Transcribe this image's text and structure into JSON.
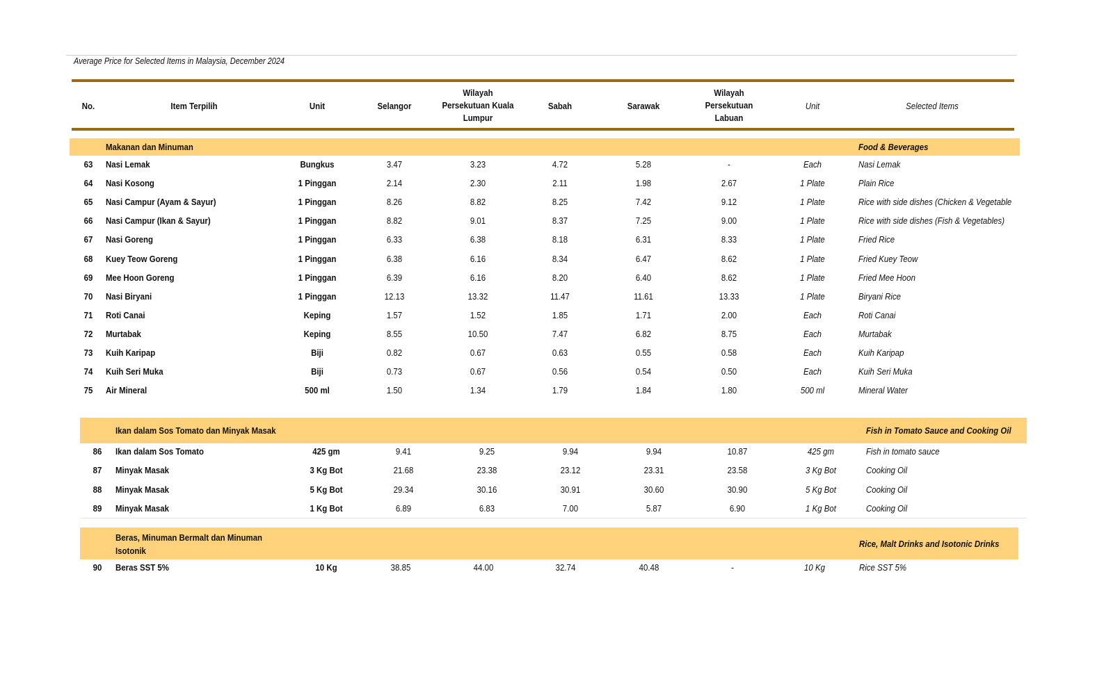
{
  "title": "Average Price for Selected Items in Malaysia, December 2024",
  "accent_color": "#fdd27a",
  "rule_color": "#9b6b12",
  "headers": {
    "no": "No.",
    "item": "Item Terpilih",
    "unit": "Unit",
    "selangor": "Selangor",
    "kl": "Wilayah Persekutuan Kuala Lumpur",
    "sabah": "Sabah",
    "sarawak": "Sarawak",
    "labuan": "Wilayah Persekutuan Labuan",
    "unit_en": "Unit",
    "selected": "Selected Items"
  },
  "sections": [
    {
      "name_ms": "Makanan dan Minuman",
      "name_en": "Food & Beverages",
      "rows": [
        {
          "no": "63",
          "item": "Nasi Lemak",
          "unit": "Bungkus",
          "v": [
            "3.47",
            "3.23",
            "4.72",
            "5.28",
            "-"
          ],
          "unit_en": "Each",
          "item_en": "Nasi Lemak"
        },
        {
          "no": "64",
          "item": "Nasi Kosong",
          "unit": "1 Pinggan",
          "v": [
            "2.14",
            "2.30",
            "2.11",
            "1.98",
            "2.67"
          ],
          "unit_en": "1 Plate",
          "item_en": "Plain Rice"
        },
        {
          "no": "65",
          "item": "Nasi Campur (Ayam & Sayur)",
          "unit": "1 Pinggan",
          "v": [
            "8.26",
            "8.82",
            "8.25",
            "7.42",
            "9.12"
          ],
          "unit_en": "1 Plate",
          "item_en": "Rice with side dishes (Chicken & Vegetable"
        },
        {
          "no": "66",
          "item": "Nasi Campur (Ikan & Sayur)",
          "unit": "1 Pinggan",
          "v": [
            "8.82",
            "9.01",
            "8.37",
            "7.25",
            "9.00"
          ],
          "unit_en": "1 Plate",
          "item_en": "Rice with side dishes (Fish & Vegetables)"
        },
        {
          "no": "67",
          "item": "Nasi Goreng",
          "unit": "1 Pinggan",
          "v": [
            "6.33",
            "6.38",
            "8.18",
            "6.31",
            "8.33"
          ],
          "unit_en": "1 Plate",
          "item_en": "Fried Rice"
        },
        {
          "no": "68",
          "item": "Kuey Teow Goreng",
          "unit": "1 Pinggan",
          "v": [
            "6.38",
            "6.16",
            "8.34",
            "6.47",
            "8.62"
          ],
          "unit_en": "1 Plate",
          "item_en": "Fried Kuey Teow"
        },
        {
          "no": "69",
          "item": "Mee Hoon Goreng",
          "unit": "1 Pinggan",
          "v": [
            "6.39",
            "6.16",
            "8.20",
            "6.40",
            "8.62"
          ],
          "unit_en": "1 Plate",
          "item_en": "Fried Mee Hoon"
        },
        {
          "no": "70",
          "item": "Nasi Biryani",
          "unit": "1 Pinggan",
          "v": [
            "12.13",
            "13.32",
            "11.47",
            "11.61",
            "13.33"
          ],
          "unit_en": "1 Plate",
          "item_en": "Biryani Rice"
        },
        {
          "no": "71",
          "item": "Roti Canai",
          "unit": "Keping",
          "v": [
            "1.57",
            "1.52",
            "1.85",
            "1.71",
            "2.00"
          ],
          "unit_en": "Each",
          "item_en": "Roti Canai"
        },
        {
          "no": "72",
          "item": "Murtabak",
          "unit": "Keping",
          "v": [
            "8.55",
            "10.50",
            "7.47",
            "6.82",
            "8.75"
          ],
          "unit_en": "Each",
          "item_en": "Murtabak"
        },
        {
          "no": "73",
          "item": "Kuih Karipap",
          "unit": "Biji",
          "v": [
            "0.82",
            "0.67",
            "0.63",
            "0.55",
            "0.58"
          ],
          "unit_en": "Each",
          "item_en": "Kuih Karipap"
        },
        {
          "no": "74",
          "item": "Kuih Seri Muka",
          "unit": "Biji",
          "v": [
            "0.73",
            "0.67",
            "0.56",
            "0.54",
            "0.50"
          ],
          "unit_en": "Each",
          "item_en": "Kuih Seri Muka"
        },
        {
          "no": "75",
          "item": "Air Mineral",
          "unit": "500 ml",
          "v": [
            "1.50",
            "1.34",
            "1.79",
            "1.84",
            "1.80"
          ],
          "unit_en": "500 ml",
          "item_en": "Mineral Water"
        }
      ]
    },
    {
      "name_ms": "Ikan dalam Sos Tomato dan Minyak Masak",
      "name_en": "Fish in Tomato Sauce and Cooking Oil",
      "rows": [
        {
          "no": "86",
          "item": "Ikan dalam Sos Tomato",
          "unit": "425 gm",
          "v": [
            "9.41",
            "9.25",
            "9.94",
            "9.94",
            "10.87"
          ],
          "unit_en": "425 gm",
          "item_en": "Fish in tomato sauce"
        },
        {
          "no": "87",
          "item": "Minyak Masak",
          "unit": "3 Kg Bot",
          "v": [
            "21.68",
            "23.38",
            "23.12",
            "23.31",
            "23.58"
          ],
          "unit_en": "3 Kg Bot",
          "item_en": "Cooking Oil"
        },
        {
          "no": "88",
          "item": "Minyak Masak",
          "unit": "5 Kg Bot",
          "v": [
            "29.34",
            "30.16",
            "30.91",
            "30.60",
            "30.90"
          ],
          "unit_en": "5 Kg Bot",
          "item_en": "Cooking Oil"
        },
        {
          "no": "89",
          "item": "Minyak Masak",
          "unit": "1 Kg Bot",
          "v": [
            "6.89",
            "6.83",
            "7.00",
            "5.87",
            "6.90"
          ],
          "unit_en": "1 Kg Bot",
          "item_en": "Cooking Oil"
        }
      ]
    },
    {
      "name_ms": "Beras, Minuman Bermalt dan Minuman Isotonik",
      "name_en": "Rice, Malt Drinks and Isotonic Drinks",
      "rows": [
        {
          "no": "90",
          "item": "Beras SST 5%",
          "unit": "10 Kg",
          "v": [
            "38.85",
            "44.00",
            "32.74",
            "40.48",
            "-"
          ],
          "unit_en": "10 Kg",
          "item_en": "Rice SST 5%"
        }
      ]
    }
  ]
}
